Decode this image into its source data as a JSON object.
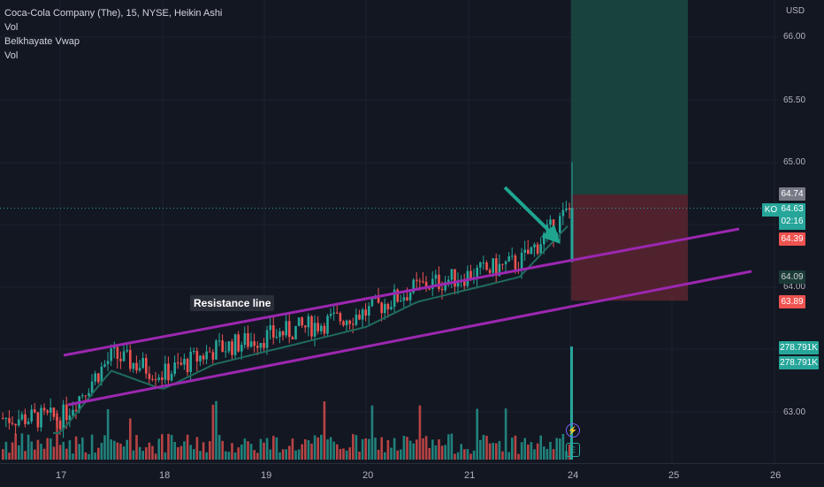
{
  "legend": {
    "symbol_line": "Coca-Cola Company (The), 15, NYSE, Heikin Ashi",
    "line2": "Vol",
    "line3": "Belkhayate Vwap",
    "line4": "Vol"
  },
  "price_axis": {
    "currency": "USD",
    "ticks": [
      "66.00",
      "65.50",
      "65.00",
      "64.00",
      "63.00"
    ],
    "tags": {
      "target_price": "64.74",
      "symbol": "KO",
      "last_price": "64.63",
      "countdown": "02:16",
      "entry_price": "64.39",
      "vwap_price": "64.09",
      "stop_price": "63.89",
      "volume_1": "278.791K",
      "volume_2": "278.791K"
    }
  },
  "time_axis": {
    "labels": [
      "17",
      "18",
      "19",
      "20",
      "21",
      "24",
      "25",
      "26"
    ]
  },
  "annotation": {
    "text": "Resistance line"
  },
  "event_icons": {
    "earnings_glyph": "⚡",
    "earnings_letter": "E"
  },
  "colors": {
    "background": "#131722",
    "up": "#26a69a",
    "down": "#ef5350",
    "channel": "#9c27b0",
    "vwap": "#1f6b5e",
    "profit_zone": "#1a4a43",
    "loss_zone": "#5a2530",
    "arrow": "#1fa58f"
  },
  "chart_data": {
    "type": "candlestick",
    "title": "Coca-Cola Company (The), 15, NYSE, Heikin Ashi",
    "y_unit": "USD",
    "ylim": [
      62.6,
      66.3
    ],
    "x_labels": [
      "17",
      "18",
      "19",
      "20",
      "21",
      "24",
      "25",
      "26"
    ],
    "price_path": [
      {
        "day": "17",
        "close": 62.95
      },
      {
        "day": "17.5",
        "close": 63.45
      },
      {
        "day": "18",
        "close": 63.3
      },
      {
        "day": "18.5",
        "close": 63.5
      },
      {
        "day": "19",
        "close": 63.6
      },
      {
        "day": "19.5",
        "close": 63.7
      },
      {
        "day": "20",
        "close": 63.8
      },
      {
        "day": "20.5",
        "close": 64.0
      },
      {
        "day": "21",
        "close": 64.1
      },
      {
        "day": "21.5",
        "close": 64.2
      },
      {
        "day": "24",
        "close": 64.63
      }
    ],
    "position": {
      "entry": 64.39,
      "target": 64.74,
      "stop": 63.89,
      "profit_top": 66.35
    },
    "channel_lines": [
      {
        "name": "upper",
        "from": [
          63.65,
          "17"
        ],
        "to": [
          64.39,
          "25.6"
        ]
      },
      {
        "name": "lower",
        "from": [
          63.05,
          "17"
        ],
        "to": [
          64.09,
          "25.8"
        ]
      }
    ],
    "last_volume": "278.791K"
  }
}
